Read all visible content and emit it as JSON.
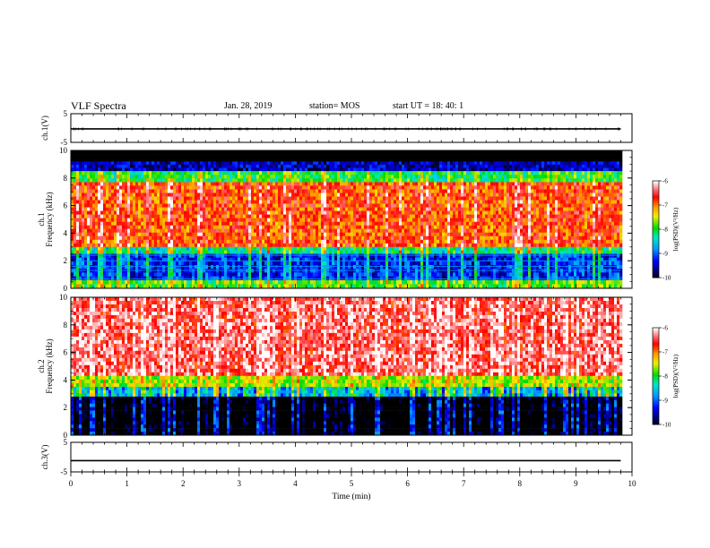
{
  "header": {
    "title": "VLF Spectra",
    "date": "Jan. 28, 2019",
    "station": "station= MOS",
    "start": "start UT =  18: 40: 1"
  },
  "chart_data": [
    {
      "type": "line",
      "panel": "ch1-waveform",
      "ylabel": "ch.1(V)",
      "ylim": [
        -5,
        5
      ],
      "yticks": [
        "5",
        "-5"
      ],
      "x": [
        0,
        9.8
      ],
      "values": [
        -0.3,
        -0.3
      ],
      "color": "#000000"
    },
    {
      "type": "heatmap",
      "panel": "ch1-spectrogram",
      "ylabel": "ch.1\nFrequency (kHz)",
      "ylim": [
        0,
        10
      ],
      "yticks": [
        "0",
        "2",
        "4",
        "6",
        "8",
        "10"
      ],
      "xlim": [
        0,
        9.8
      ],
      "colorbar": {
        "label": "log(PSD)(V²/Hz)",
        "ticks": [
          "-6",
          "-7",
          "-8",
          "-9",
          "-10"
        ],
        "range": [
          -10,
          -6
        ]
      },
      "bands": [
        {
          "f": [
            9.2,
            10
          ],
          "level": -10.5
        },
        {
          "f": [
            8.5,
            9.2
          ],
          "level": -9.5
        },
        {
          "f": [
            7.7,
            8.5
          ],
          "level": -8.0
        },
        {
          "f": [
            3.0,
            7.7
          ],
          "level": -6.8
        },
        {
          "f": [
            2.5,
            3.0
          ],
          "level": -8.2
        },
        {
          "f": [
            0.6,
            2.5
          ],
          "level": -9.2
        },
        {
          "f": [
            0.0,
            0.6
          ],
          "level": -7.8
        }
      ]
    },
    {
      "type": "heatmap",
      "panel": "ch2-spectrogram",
      "ylabel": "ch.2\nFrequency (kHz)",
      "ylim": [
        0,
        10
      ],
      "yticks": [
        "0",
        "2",
        "4",
        "6",
        "8",
        "10"
      ],
      "xlim": [
        0,
        9.8
      ],
      "colorbar": {
        "label": "log(PSD)(V²/Hz)",
        "ticks": [
          "-6",
          "-7",
          "-8",
          "-9",
          "-10"
        ],
        "range": [
          -10,
          -6
        ]
      },
      "bands": [
        {
          "f": [
            4.3,
            10
          ],
          "level": -6.4
        },
        {
          "f": [
            3.5,
            4.3
          ],
          "level": -7.6
        },
        {
          "f": [
            2.8,
            3.5
          ],
          "level": -8.6
        },
        {
          "f": [
            0.0,
            2.8
          ],
          "level": -10.3
        }
      ]
    },
    {
      "type": "line",
      "panel": "ch3-waveform",
      "ylabel": "ch.3(V)",
      "ylim": [
        -5,
        5
      ],
      "yticks": [
        "5",
        "-5"
      ],
      "x": [
        0,
        9.8
      ],
      "values": [
        -1.2,
        -1.2
      ],
      "color": "#000000"
    }
  ],
  "xaxis": {
    "label": "Time (min)",
    "range": [
      0,
      10
    ],
    "ticks": [
      "0",
      "1",
      "2",
      "3",
      "4",
      "5",
      "6",
      "7",
      "8",
      "9",
      "10"
    ]
  }
}
